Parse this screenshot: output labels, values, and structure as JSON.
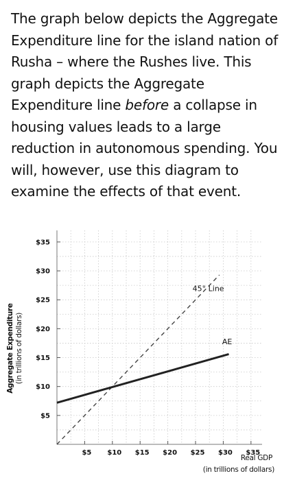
{
  "question": {
    "text_part1": "The graph below depicts the Aggregate Expenditure line for the island nation of Rusha – where the Rushes live. This graph depicts the Aggregate Expenditure line ",
    "text_emphasis": "before",
    "text_part2": " a collapse in housing values leads to a large reduction in autonomous spending. You will, however, use this diagram to examine the effects of that event."
  },
  "chart_data": {
    "type": "line",
    "ylabel_line1": "Aggregate Expenditure",
    "ylabel_line2": "(in trillions of dollars)",
    "xlabel_line1": "Real GDP",
    "xlabel_line2": "(in trillions of dollars)",
    "xlim": [
      0,
      37
    ],
    "ylim": [
      0,
      37
    ],
    "x_ticks": [
      5,
      10,
      15,
      20,
      25,
      30,
      35
    ],
    "x_tick_labels": [
      "$5",
      "$10",
      "$15",
      "$20",
      "$25",
      "$30",
      "$35"
    ],
    "y_ticks": [
      5,
      10,
      15,
      20,
      25,
      30,
      35
    ],
    "y_tick_labels": [
      "$5",
      "$10",
      "$15",
      "$20",
      "$25",
      "$30",
      "$35"
    ],
    "grid": true,
    "series": [
      {
        "name": "45° Line",
        "style": "dashed",
        "color": "#444444",
        "x": [
          0,
          29.3
        ],
        "y": [
          0,
          29.3
        ]
      },
      {
        "name": "AE",
        "style": "solid",
        "color": "#222222",
        "x": [
          0,
          31
        ],
        "y": [
          7.2,
          15.6
        ]
      }
    ],
    "annotations": [
      {
        "text": "45° Line",
        "x": 27.3,
        "y": 26.5
      },
      {
        "text": "AE",
        "x": 30.7,
        "y": 17.3
      }
    ]
  }
}
